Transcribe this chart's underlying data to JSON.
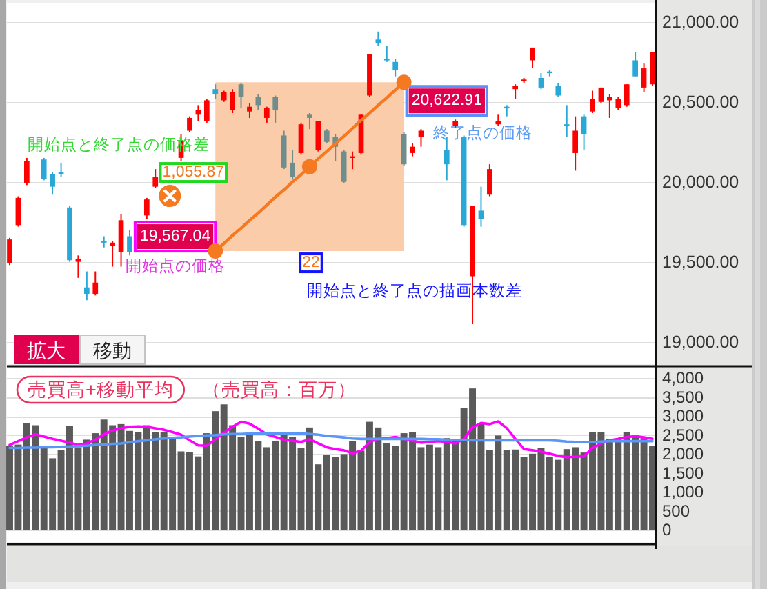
{
  "chart_data": [
    {
      "type": "candlestick",
      "categories": [
        null,
        null,
        null,
        null,
        null,
        null,
        null,
        null,
        null,
        null,
        null,
        null,
        null,
        null,
        null,
        null,
        null,
        null,
        null,
        null,
        null,
        null,
        null,
        null,
        null,
        null,
        null,
        null,
        null,
        null,
        null,
        null,
        null,
        null,
        null,
        null,
        null,
        null,
        null,
        null,
        null,
        null,
        null,
        null,
        null,
        null,
        null,
        null,
        null,
        null,
        null,
        null,
        null,
        null,
        null,
        null,
        null,
        null,
        null,
        null,
        null,
        null,
        null,
        null,
        null,
        null,
        null,
        null,
        null,
        null,
        null,
        null,
        null,
        null,
        null,
        null
      ],
      "ohlc": [
        [
          19490,
          19650,
          19480,
          19640
        ],
        [
          19730,
          19910,
          19720,
          19900
        ],
        [
          19990,
          20150,
          19980,
          20130
        ],
        null,
        [
          20140,
          20150,
          20010,
          20020
        ],
        [
          20050,
          20060,
          19920,
          19970
        ],
        [
          20060,
          20120,
          20030,
          20050
        ],
        [
          19840,
          19850,
          19500,
          19510
        ],
        [
          19500,
          19540,
          19400,
          19520
        ],
        [
          19340,
          19440,
          19260,
          19300
        ],
        [
          19300,
          19440,
          19290,
          19370
        ],
        [
          19630,
          19660,
          19590,
          19620
        ],
        [
          19600,
          19630,
          19470,
          19620
        ],
        [
          19560,
          19800,
          19470,
          19760
        ],
        [
          19660,
          19700,
          19540,
          19560
        ],
        null,
        [
          19790,
          19900,
          19770,
          19890
        ],
        [
          19970,
          20080,
          19960,
          20030
        ],
        null,
        null,
        [
          20150,
          20300,
          20130,
          20260
        ],
        [
          20320,
          20410,
          20310,
          20400
        ],
        [
          20420,
          20480,
          20380,
          20450
        ],
        [
          20380,
          20520,
          20370,
          20510
        ],
        [
          20580,
          20610,
          20520,
          20550
        ],
        [
          20510,
          20570,
          20500,
          20560
        ],
        [
          20450,
          20580,
          20430,
          20560
        ],
        [
          20610,
          20620,
          20460,
          20530
        ],
        [
          20440,
          20490,
          20400,
          20470
        ],
        [
          20530,
          20550,
          20450,
          20480
        ],
        [
          20400,
          20470,
          20370,
          20460
        ],
        [
          20530,
          20540,
          20370,
          20450
        ],
        [
          20290,
          20320,
          20080,
          20090
        ],
        [
          20120,
          20200,
          20020,
          20030
        ],
        [
          20180,
          20370,
          20170,
          20360
        ],
        [
          20420,
          20430,
          20330,
          20400
        ],
        [
          20200,
          20380,
          20190,
          20380
        ],
        [
          20320,
          20330,
          20240,
          20250
        ],
        [
          20280,
          20300,
          20130,
          20220
        ],
        [
          20190,
          20200,
          19990,
          20000
        ],
        [
          20150,
          20190,
          20080,
          20160
        ],
        [
          20180,
          20420,
          20170,
          20420
        ],
        [
          20540,
          20800,
          20530,
          20800
        ],
        [
          20890,
          20940,
          20850,
          20870
        ],
        [
          20770,
          20850,
          20750,
          20760
        ],
        [
          20750,
          20770,
          20660,
          20700
        ],
        [
          20300,
          20310,
          20100,
          20110
        ],
        [
          20180,
          20240,
          20160,
          20220
        ],
        [
          20280,
          20330,
          20220,
          20320
        ],
        null,
        null,
        [
          20200,
          20280,
          20010,
          20110
        ],
        [
          20350,
          20390,
          20340,
          20380
        ],
        [
          20280,
          20290,
          19720,
          19730
        ],
        [
          19410,
          19850,
          19110,
          19850
        ],
        [
          19820,
          19970,
          19720,
          19770
        ],
        [
          19920,
          20110,
          19910,
          20080
        ],
        [
          20360,
          20420,
          20350,
          20380
        ],
        [
          20470,
          20480,
          20410,
          20460
        ],
        [
          20580,
          20610,
          20520,
          20600
        ],
        [
          20630,
          20650,
          20620,
          20640
        ],
        [
          20760,
          20840,
          20710,
          20840
        ],
        [
          20650,
          20680,
          20580,
          20590
        ],
        [
          20690,
          20700,
          20660,
          20680
        ],
        [
          20600,
          20620,
          20530,
          20540
        ],
        [
          20360,
          20480,
          20280,
          20350
        ],
        [
          20180,
          20410,
          20070,
          20320
        ],
        [
          20410,
          20420,
          20200,
          20300
        ],
        [
          20440,
          20570,
          20430,
          20520
        ],
        [
          20500,
          20590,
          20490,
          20590
        ],
        [
          20510,
          20550,
          20400,
          20530
        ],
        [
          20460,
          20530,
          20450,
          20520
        ],
        [
          20480,
          20610,
          20470,
          20610
        ],
        [
          20760,
          20810,
          20660,
          20660
        ],
        [
          20590,
          20740,
          20560,
          20710
        ],
        [
          20610,
          20810,
          20600,
          20810
        ]
      ],
      "colors": [
        "#ff0000",
        "#ff0000",
        "#ff0000",
        null,
        "#29a8d8",
        "#29a8d8",
        "#29a8d8",
        "#29a8d8",
        "#ff0000",
        "#29a8d8",
        "#ff0000",
        "#29a8d8",
        "#ff0000",
        "#ff0000",
        "#29a8d8",
        null,
        "#ff0000",
        "#ff0000",
        null,
        null,
        "#ff0000",
        "#ff0000",
        "#ff0000",
        "#ff0000",
        "#29a8d8",
        "#ff0000",
        "#ff0000",
        "#6f8d8c",
        "#ff0000",
        "#6f8d8c",
        "#ff0000",
        "#6f8d8c",
        "#6f8d8c",
        "#6f8d8c",
        "#ff0000",
        "#6f8d8c",
        "#ff0000",
        "#6f8d8c",
        "#6f8d8c",
        "#6f8d8c",
        "#ff0000",
        "#ff0000",
        "#ff0000",
        "#29a8d8",
        "#29a8d8",
        "#29a8d8",
        "#6f8d8c",
        "#ff0000",
        "#ff0000",
        null,
        null,
        "#29a8d8",
        "#ff0000",
        "#29a8d8",
        "#ff0000",
        "#29a8d8",
        "#ff0000",
        "#ff0000",
        "#29a8d8",
        "#ff0000",
        "#ff0000",
        "#ff0000",
        "#29a8d8",
        "#29a8d8",
        "#29a8d8",
        "#29a8d8",
        "#ff0000",
        "#29a8d8",
        "#ff0000",
        "#ff0000",
        "#ff0000",
        "#ff0000",
        "#ff0000",
        "#29a8d8",
        "#ff0000",
        "#ff0000"
      ],
      "series": [
        {
          "type": "line",
          "color": "#f47920",
          "values": [
            null,
            null,
            null,
            null,
            null,
            null,
            null,
            null,
            null,
            null,
            null,
            null,
            null,
            null,
            null,
            null,
            null,
            null,
            null,
            null,
            null,
            null,
            null,
            null,
            19567.04,
            19615,
            19665,
            19710,
            19760,
            19805,
            19855,
            19905,
            19950,
            20000,
            20045,
            20095,
            20145,
            20190,
            20240,
            20285,
            20335,
            20385,
            20430,
            20480,
            20525,
            20575,
            20622.91,
            null,
            null,
            null,
            null,
            null,
            null,
            null,
            null,
            null,
            null,
            null,
            null,
            null,
            null,
            null,
            null,
            null,
            null,
            null,
            null,
            null,
            null,
            null,
            null,
            null,
            null,
            null,
            null,
            null
          ],
          "lower": [
            null,
            null,
            null,
            null,
            null,
            null,
            null,
            null,
            null,
            null,
            null,
            null,
            null,
            null,
            null,
            null,
            null,
            null,
            null,
            null,
            null,
            null,
            null,
            null,
            19567.04,
            19567.04,
            19567.04,
            19567.04,
            19567.04,
            19567.04,
            19567.04,
            19567.04,
            19567.04,
            19567.04,
            19567.04,
            19567.04,
            19567.04,
            19567.04,
            19567.04,
            19567.04,
            19567.04,
            19567.04,
            null,
            19567.04,
            19567.04,
            19567.04,
            19567.04,
            null,
            null,
            null,
            null,
            null,
            null,
            null,
            null,
            null,
            null,
            null,
            null,
            null,
            null,
            null,
            null,
            null,
            null,
            null,
            null,
            null,
            null,
            null,
            null,
            null,
            null,
            null,
            null,
            null
          ],
          "upper": [
            null,
            null,
            null,
            null,
            null,
            null,
            null,
            null,
            null,
            null,
            null,
            null,
            null,
            null,
            null,
            null,
            null,
            null,
            null,
            null,
            null,
            null,
            null,
            null,
            20622.91,
            20622.91,
            20622.91,
            20622.91,
            20622.91,
            20622.91,
            20622.91,
            20622.91,
            20622.91,
            20622.91,
            20622.91,
            20622.91,
            20622.91,
            20622.91,
            20622.91,
            20622.91,
            20622.91,
            20622.91,
            null,
            20622.91,
            20622.91,
            20622.91,
            20622.91,
            null,
            null,
            null,
            null,
            null,
            null,
            null,
            null,
            null,
            null,
            null,
            null,
            null,
            null,
            null,
            null,
            null,
            null,
            null,
            null,
            null,
            null,
            null,
            null,
            null,
            null,
            null,
            null,
            null
          ]
        },
        {
          "type": "scatter",
          "color": "#f47920",
          "marker": "circle",
          "values": [
            null,
            null,
            null,
            null,
            null,
            null,
            null,
            null,
            null,
            null,
            null,
            null,
            null,
            null,
            null,
            null,
            null,
            null,
            null,
            null,
            null,
            null,
            null,
            null,
            19567.04,
            null,
            null,
            null,
            null,
            null,
            null,
            null,
            null,
            null,
            null,
            20095,
            null,
            null,
            null,
            null,
            null,
            null,
            null,
            null,
            null,
            null,
            20622.91,
            null,
            null,
            null,
            null,
            null,
            null,
            null,
            null,
            null,
            null,
            null,
            null,
            null,
            null,
            null,
            null,
            null,
            null,
            null,
            null,
            null,
            null,
            null,
            null,
            null,
            null,
            null,
            null,
            null
          ],
          "value_labels": [
            null,
            null,
            null,
            null,
            null,
            null,
            null,
            null,
            null,
            null,
            null,
            null,
            null,
            null,
            null,
            null,
            null,
            null,
            null,
            null,
            null,
            null,
            null,
            null,
            "19,567.04",
            null,
            null,
            null,
            null,
            null,
            null,
            null,
            null,
            null,
            null,
            null,
            null,
            null,
            null,
            null,
            null,
            null,
            null,
            null,
            null,
            null,
            "20,622.91",
            null,
            null,
            null,
            null,
            null,
            null,
            null,
            null,
            null,
            null,
            null,
            null,
            null,
            null,
            null,
            null,
            null,
            null,
            null,
            null,
            null,
            null,
            null,
            null,
            null,
            null,
            null,
            null,
            null
          ]
        }
      ],
      "ylim": [
        18860,
        21120
      ],
      "yticks": [
        {
          "value": 19000,
          "label": "19,000.00"
        },
        {
          "value": 19500,
          "label": "19,500.00"
        },
        {
          "value": 20000,
          "label": "20,000.00"
        },
        {
          "value": 20500,
          "label": "20,500.00"
        },
        {
          "value": 21000,
          "label": "21,000.00"
        }
      ],
      "grid": "y",
      "tick_labels": "y",
      "annotations": [
        "開始点の価格",
        "終了点の価格",
        "開始点と終了点の価格差",
        "1,055.87",
        "22",
        "開始点と終了点の描画本数差",
        "拡大",
        "移動"
      ]
    },
    {
      "type": "bar",
      "title": "売買高+移動平均",
      "subtitle": "（売買高：百万）",
      "categories": [
        null,
        null,
        null,
        null,
        null,
        null,
        null,
        null,
        null,
        null,
        null,
        null,
        null,
        null,
        null,
        null,
        null,
        null,
        null,
        null,
        null,
        null,
        null,
        null,
        null,
        null,
        null,
        null,
        null,
        null,
        null,
        null,
        null,
        null,
        null,
        null,
        null,
        null,
        null,
        null,
        null,
        null,
        null,
        null,
        null,
        null,
        null,
        null,
        null,
        null,
        null,
        null,
        null,
        null,
        null,
        null,
        null,
        null,
        null,
        null,
        null,
        null,
        null,
        null,
        null,
        null,
        null,
        null,
        null,
        null,
        null,
        null,
        null,
        null,
        null,
        null
      ],
      "series": [
        {
          "type": "bar",
          "color": "#5a5a5a",
          "values": [
            2220,
            2250,
            2810,
            2760,
            2180,
            1890,
            2100,
            2740,
            2180,
            2380,
            2550,
            2910,
            2760,
            2790,
            2610,
            2580,
            2760,
            2580,
            2580,
            2420,
            2070,
            2060,
            1940,
            2550,
            3130,
            3310,
            2760,
            2450,
            2550,
            2340,
            2180,
            2340,
            2550,
            2460,
            2160,
            2700,
            1730,
            1980,
            1920,
            2000,
            2340,
            2090,
            2850,
            2700,
            2280,
            2220,
            2550,
            2580,
            2180,
            2250,
            2180,
            2420,
            2380,
            3220,
            3730,
            2790,
            2100,
            2490,
            2100,
            2120,
            1920,
            2010,
            2160,
            1920,
            1850,
            2130,
            2180,
            2040,
            2580,
            2580,
            2400,
            2400,
            2580,
            2500,
            2420,
            2220
          ]
        },
        {
          "type": "line",
          "color": "#ff00ff",
          "values": [
            2240,
            2340,
            2440,
            2520,
            2460,
            2400,
            2350,
            2300,
            2240,
            2280,
            2380,
            2520,
            2620,
            2680,
            2720,
            2730,
            2720,
            2680,
            2640,
            2580,
            2510,
            2360,
            2230,
            2220,
            2390,
            2560,
            2720,
            2850,
            2800,
            2670,
            2520,
            2450,
            2380,
            2350,
            2320,
            2390,
            2280,
            2180,
            2130,
            2100,
            2020,
            2090,
            2320,
            2400,
            2420,
            2450,
            2400,
            2350,
            2300,
            2320,
            2340,
            2320,
            2280,
            2400,
            2700,
            2820,
            2790,
            2860,
            2680,
            2400,
            2130,
            2100,
            2060,
            2010,
            1950,
            1920,
            1930,
            1940,
            2160,
            2280,
            2360,
            2400,
            2450,
            2470,
            2440,
            2400
          ]
        },
        {
          "type": "line",
          "color": "#5b95f5",
          "values": [
            2160,
            2160,
            2170,
            2170,
            2180,
            2180,
            2190,
            2200,
            2210,
            2220,
            2240,
            2250,
            2270,
            2280,
            2310,
            2340,
            2360,
            2390,
            2410,
            2430,
            2440,
            2460,
            2480,
            2490,
            2500,
            2520,
            2530,
            2530,
            2540,
            2540,
            2550,
            2550,
            2550,
            2550,
            2550,
            2530,
            2510,
            2480,
            2460,
            2440,
            2410,
            2400,
            2400,
            2400,
            2400,
            2400,
            2400,
            2400,
            2400,
            2390,
            2390,
            2380,
            2370,
            2370,
            2360,
            2360,
            2360,
            2360,
            2360,
            2360,
            2360,
            2360,
            2360,
            2360,
            2350,
            2330,
            2320,
            2310,
            2320,
            2330,
            2340,
            2340,
            2340,
            2340,
            2340,
            2340
          ]
        }
      ],
      "ylim": [
        -320,
        4260
      ],
      "yticks": [
        0,
        500,
        {
          "value": 1000,
          "label": "1,000"
        },
        {
          "value": 1500,
          "label": "1,500"
        },
        {
          "value": 2000,
          "label": "2,000"
        },
        {
          "value": 2500,
          "label": "2,500"
        },
        {
          "value": 3000,
          "label": "3,000"
        },
        {
          "value": 3500,
          "label": "3,500"
        },
        {
          "value": 4000,
          "label": "4,000"
        }
      ],
      "grid": "y",
      "tick_labels": "y"
    }
  ]
}
